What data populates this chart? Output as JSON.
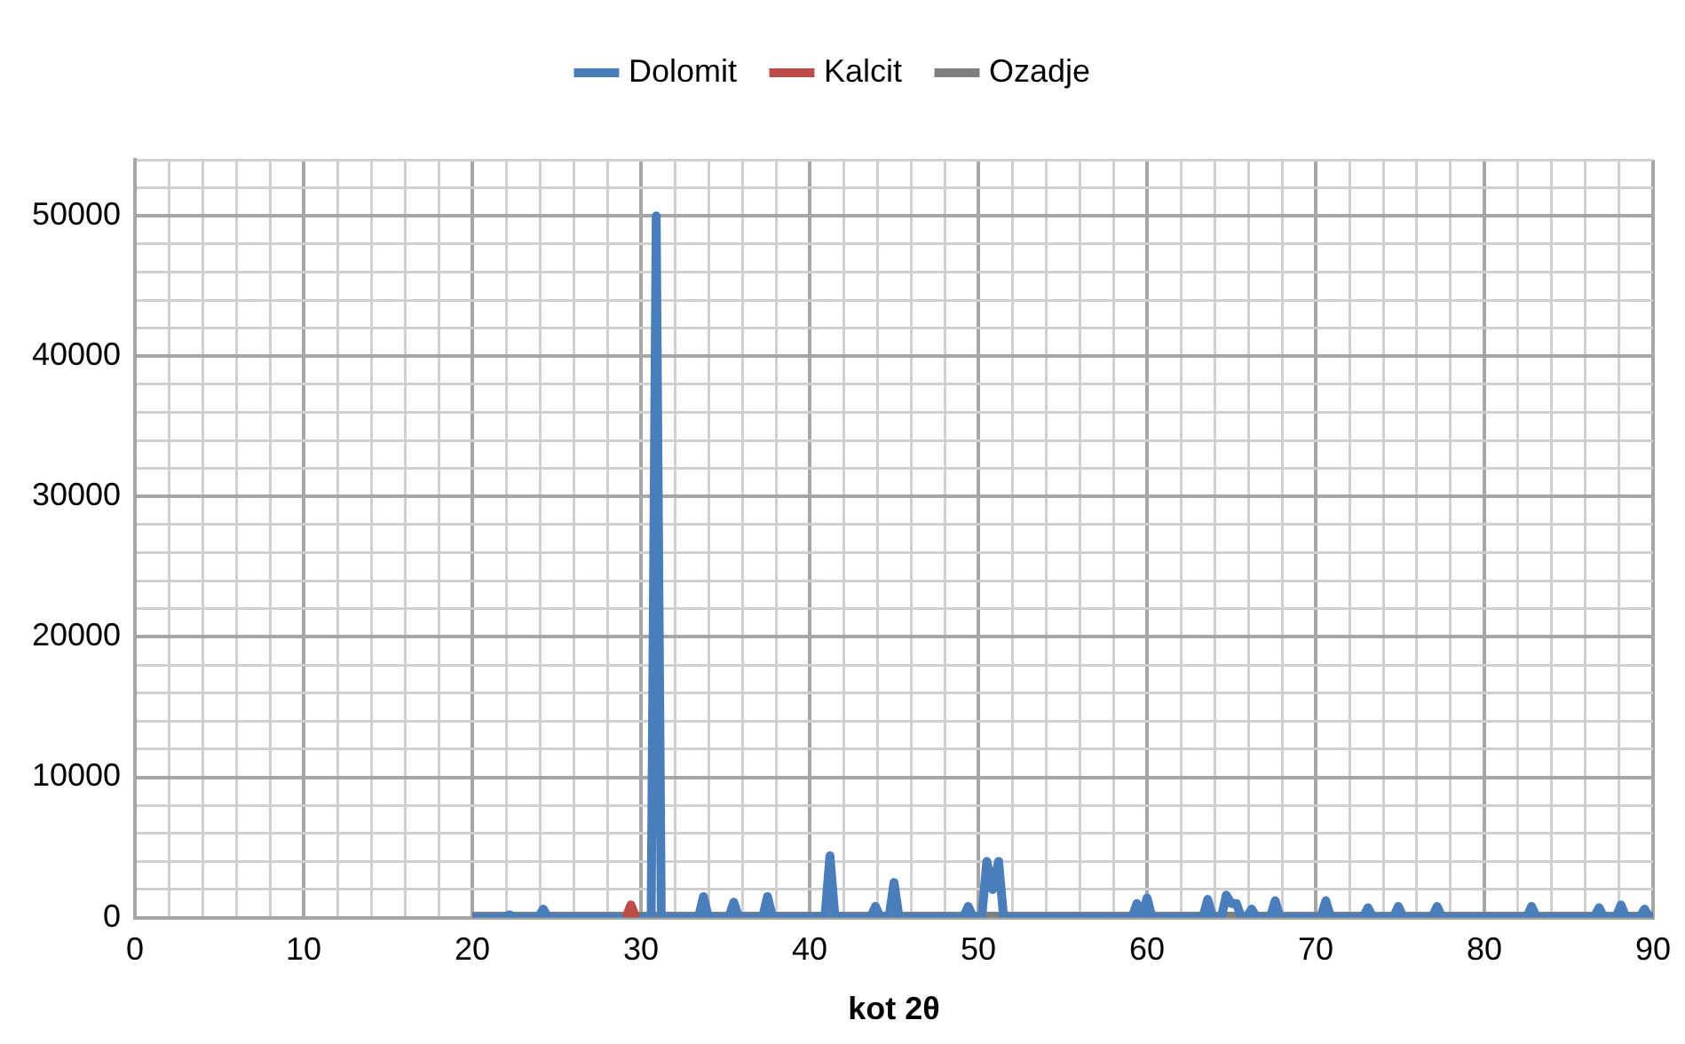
{
  "chart_data": {
    "type": "line",
    "xlabel": "kot 2θ",
    "xlim": [
      0,
      90
    ],
    "ylim": [
      0,
      54000
    ],
    "xticks": [
      0,
      {
        "value": 2,
        "label": null
      },
      {
        "value": 4,
        "label": null
      },
      {
        "value": 6,
        "label": null
      },
      {
        "value": 8,
        "label": null
      },
      10,
      {
        "value": 12,
        "label": null
      },
      {
        "value": 14,
        "label": null
      },
      {
        "value": 16,
        "label": null
      },
      {
        "value": 18,
        "label": null
      },
      20,
      {
        "value": 22,
        "label": null
      },
      {
        "value": 24,
        "label": null
      },
      {
        "value": 26,
        "label": null
      },
      {
        "value": 28,
        "label": null
      },
      30,
      {
        "value": 32,
        "label": null
      },
      {
        "value": 34,
        "label": null
      },
      {
        "value": 36,
        "label": null
      },
      {
        "value": 38,
        "label": null
      },
      40,
      {
        "value": 42,
        "label": null
      },
      {
        "value": 44,
        "label": null
      },
      {
        "value": 46,
        "label": null
      },
      {
        "value": 48,
        "label": null
      },
      50,
      {
        "value": 52,
        "label": null
      },
      {
        "value": 54,
        "label": null
      },
      {
        "value": 56,
        "label": null
      },
      {
        "value": 58,
        "label": null
      },
      60,
      {
        "value": 62,
        "label": null
      },
      {
        "value": 64,
        "label": null
      },
      {
        "value": 66,
        "label": null
      },
      {
        "value": 68,
        "label": null
      },
      70,
      {
        "value": 72,
        "label": null
      },
      {
        "value": 74,
        "label": null
      },
      {
        "value": 76,
        "label": null
      },
      {
        "value": 78,
        "label": null
      },
      80,
      {
        "value": 82,
        "label": null
      },
      {
        "value": 84,
        "label": null
      },
      {
        "value": 86,
        "label": null
      },
      {
        "value": 88,
        "label": null
      },
      90
    ],
    "yticks": [
      0,
      {
        "value": 2000,
        "label": null
      },
      {
        "value": 4000,
        "label": null
      },
      {
        "value": 6000,
        "label": null
      },
      {
        "value": 8000,
        "label": null
      },
      10000,
      {
        "value": 12000,
        "label": null
      },
      {
        "value": 14000,
        "label": null
      },
      {
        "value": 16000,
        "label": null
      },
      {
        "value": 18000,
        "label": null
      },
      20000,
      {
        "value": 22000,
        "label": null
      },
      {
        "value": 24000,
        "label": null
      },
      {
        "value": 26000,
        "label": null
      },
      {
        "value": 28000,
        "label": null
      },
      30000,
      {
        "value": 32000,
        "label": null
      },
      {
        "value": 34000,
        "label": null
      },
      {
        "value": 36000,
        "label": null
      },
      {
        "value": 38000,
        "label": null
      },
      40000,
      {
        "value": 42000,
        "label": null
      },
      {
        "value": 44000,
        "label": null
      },
      {
        "value": 46000,
        "label": null
      },
      {
        "value": 48000,
        "label": null
      },
      50000,
      {
        "value": 52000,
        "label": null
      },
      {
        "value": 54000,
        "label": null
      }
    ],
    "grid": true,
    "legend": "top",
    "marker": "none",
    "line_style": "solid",
    "series": [
      {
        "name": "Dolomit",
        "color": "#4a7ebb",
        "x": [
          20,
          21.9,
          22.2,
          22.5,
          23.9,
          24.2,
          24.5,
          30.6,
          30.9,
          31.2,
          33.4,
          33.7,
          34,
          35.2,
          35.5,
          35.8,
          37.2,
          37.5,
          37.8,
          40.9,
          41.2,
          41.5,
          43.6,
          43.9,
          44.2,
          44.7,
          45,
          45.3,
          49.1,
          49.4,
          49.7,
          50.2,
          50.5,
          50.85,
          51.2,
          51.5,
          59.1,
          59.4,
          59.7,
          59.75,
          60,
          60.3,
          63.3,
          63.6,
          63.9,
          64.4,
          64.7,
          65,
          65.3,
          65.6,
          65.9,
          66.2,
          66.5,
          67.3,
          67.6,
          67.9,
          70.3,
          70.6,
          70.9,
          72.8,
          73.1,
          73.4,
          74.6,
          74.9,
          75.2,
          76.9,
          77.2,
          77.5,
          82.5,
          82.8,
          83.1,
          86.5,
          86.8,
          87.1,
          87.8,
          88.1,
          88.4,
          89.2,
          89.5,
          89.8,
          90
        ],
        "values": [
          0,
          0,
          200,
          0,
          0,
          600,
          0,
          0,
          50000,
          0,
          0,
          1500,
          0,
          0,
          1100,
          0,
          0,
          1500,
          0,
          0,
          4400,
          0,
          0,
          800,
          0,
          0,
          2500,
          0,
          0,
          800,
          0,
          0,
          4000,
          2000,
          4000,
          0,
          0,
          1000,
          0,
          0,
          1400,
          0,
          0,
          1300,
          0,
          0,
          1600,
          1000,
          1000,
          0,
          0,
          600,
          0,
          0,
          1200,
          0,
          0,
          1200,
          0,
          0,
          700,
          0,
          0,
          800,
          0,
          0,
          800,
          0,
          0,
          800,
          0,
          0,
          700,
          0,
          0,
          900,
          0,
          0,
          600,
          0,
          0
        ]
      },
      {
        "name": "Kalcit",
        "color": "#be4b48",
        "x": [
          29.1,
          29.4,
          29.7
        ],
        "values": [
          0,
          900,
          0
        ]
      },
      {
        "name": "Ozadje",
        "color": "#7f7f7f",
        "x": [
          20,
          90
        ],
        "values": [
          100,
          100
        ]
      }
    ]
  }
}
